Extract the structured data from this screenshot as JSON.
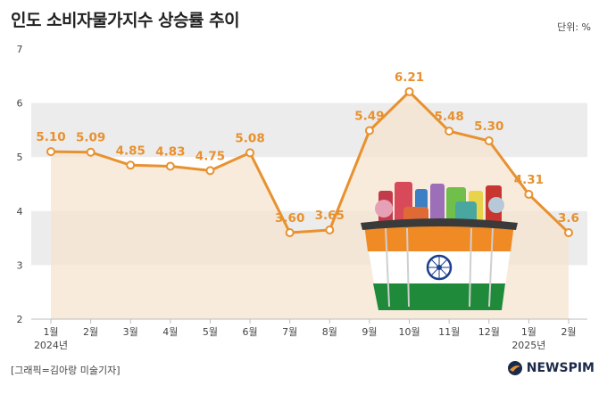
{
  "header": {
    "title": "인도 소비자물가지수 상승률 추이",
    "unit": "단위: %"
  },
  "footer": {
    "credit": "[그래픽=김아랑 미술기자]",
    "logo_text": "NEWSPIM"
  },
  "colors": {
    "line": "#e8912f",
    "area": "#f6e4d0",
    "band": "#ececec",
    "logo": "#1b2a4a"
  },
  "chart_data": {
    "type": "line",
    "title": "인도 소비자물가지수 상승률 추이",
    "unit": "%",
    "categories": [
      "1월",
      "2월",
      "3월",
      "4월",
      "5월",
      "6월",
      "7월",
      "8월",
      "9월",
      "10월",
      "11월",
      "12월",
      "1월",
      "2월"
    ],
    "year_labels": [
      {
        "index": 0,
        "label": "2024년"
      },
      {
        "index": 12,
        "label": "2025년"
      }
    ],
    "values": [
      5.1,
      5.09,
      4.85,
      4.83,
      4.75,
      5.08,
      3.6,
      3.65,
      5.49,
      6.21,
      5.48,
      5.3,
      4.31,
      3.6
    ],
    "value_labels": [
      "5.10",
      "5.09",
      "4.85",
      "4.83",
      "4.75",
      "5.08",
      "3.60",
      "3.65",
      "5.49",
      "6.21",
      "5.48",
      "5.30",
      "4.31",
      "3.6"
    ],
    "ylim": [
      2,
      7
    ],
    "yticks": [
      2,
      3,
      4,
      5,
      6,
      7
    ],
    "xlabel": "",
    "ylabel": ""
  }
}
